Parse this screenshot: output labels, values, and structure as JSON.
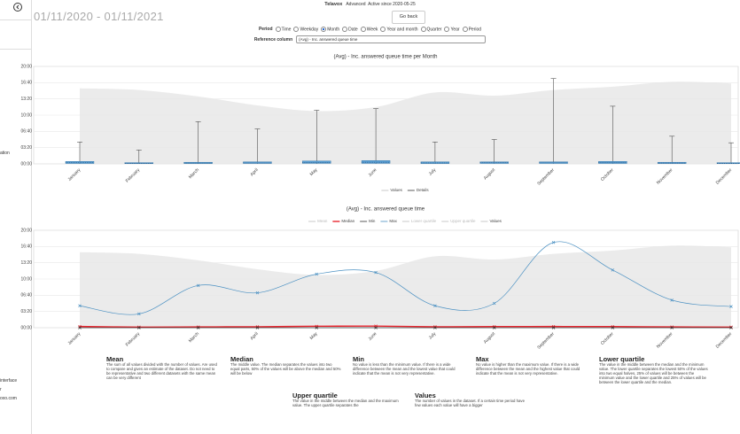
{
  "header": {
    "brand": "Telavox",
    "plan": "Advanced",
    "status": "Active since 2020-05-25"
  },
  "sidebar": [
    "ation",
    "interface",
    "r",
    "oxo.com"
  ],
  "date_range": "01/11/2020 - 01/11/2021",
  "back_button": "Go back",
  "period": {
    "label": "Period",
    "options": [
      "Time",
      "Weekday",
      "Month",
      "Date",
      "Week",
      "Year and month",
      "Quarter",
      "Year",
      "Period"
    ],
    "selected": 2
  },
  "reference": {
    "label": "Reference column",
    "value": "(Avg) - Inc. answered queue time"
  },
  "chart_data": [
    {
      "type": "boxplot",
      "title": "(Avg) - Inc. answered queue time per Month",
      "categories": [
        "January",
        "February",
        "March",
        "April",
        "May",
        "June",
        "July",
        "August",
        "September",
        "October",
        "November",
        "December"
      ],
      "ylim": [
        0,
        1200
      ],
      "yticks": [
        {
          "value": 0,
          "label": "00:00"
        },
        {
          "value": 200,
          "label": "03:20"
        },
        {
          "value": 400,
          "label": "06:40"
        },
        {
          "value": 600,
          "label": "10:00"
        },
        {
          "value": 800,
          "label": "13:20"
        },
        {
          "value": 1000,
          "label": "16:40"
        },
        {
          "value": 1200,
          "label": "20:00"
        }
      ],
      "grid": true,
      "series": [
        {
          "name": "Values",
          "color": "#e6e6e6",
          "style": "area",
          "values": [
            930,
            910,
            830,
            720,
            650,
            700,
            880,
            840,
            910,
            950,
            1010,
            990
          ]
        },
        {
          "name": "Details",
          "color": "#5a9fd4",
          "style": "box",
          "min": [
            0,
            0,
            0,
            0,
            0,
            0,
            0,
            0,
            0,
            0,
            0,
            0
          ],
          "lower_quartile": [
            5,
            3,
            4,
            5,
            6,
            6,
            4,
            5,
            5,
            5,
            4,
            3
          ],
          "median": [
            15,
            8,
            10,
            12,
            18,
            20,
            12,
            14,
            15,
            14,
            10,
            8
          ],
          "upper_quartile": [
            30,
            15,
            20,
            25,
            35,
            40,
            25,
            25,
            25,
            30,
            20,
            15
          ],
          "max": [
            270,
            170,
            520,
            430,
            660,
            680,
            270,
            300,
            1050,
            710,
            340,
            260
          ]
        }
      ]
    },
    {
      "type": "line",
      "title": "(Avg) - Inc. answered queue time",
      "categories": [
        "January",
        "February",
        "March",
        "April",
        "May",
        "June",
        "July",
        "August",
        "September",
        "October",
        "November",
        "December"
      ],
      "ylim": [
        0,
        1200
      ],
      "yticks": [
        {
          "value": 0,
          "label": "00:00"
        },
        {
          "value": 200,
          "label": "03:20"
        },
        {
          "value": 400,
          "label": "06:40"
        },
        {
          "value": 600,
          "label": "10:00"
        },
        {
          "value": 800,
          "label": "13:20"
        },
        {
          "value": 1000,
          "label": "16:40"
        },
        {
          "value": 1200,
          "label": "20:00"
        }
      ],
      "grid": true,
      "series": [
        {
          "name": "Mean",
          "color": "#bbbbbb",
          "visible": false
        },
        {
          "name": "Median",
          "color": "#e8262f",
          "style": "line",
          "values": [
            15,
            8,
            10,
            12,
            18,
            20,
            12,
            14,
            15,
            14,
            10,
            8
          ]
        },
        {
          "name": "Min",
          "color": "#333333",
          "style": "line",
          "values": [
            0,
            0,
            0,
            0,
            0,
            0,
            0,
            0,
            0,
            0,
            0,
            0
          ]
        },
        {
          "name": "Max",
          "color": "#4a90c2",
          "style": "line",
          "values": [
            270,
            170,
            520,
            430,
            660,
            680,
            270,
            300,
            1050,
            710,
            340,
            260
          ]
        },
        {
          "name": "Lower quartile",
          "color": "#bbbbbb",
          "visible": false
        },
        {
          "name": "Upper quartile",
          "color": "#bbbbbb",
          "visible": false
        },
        {
          "name": "Values",
          "color": "#e6e6e6",
          "style": "area",
          "values": [
            930,
            910,
            830,
            720,
            650,
            700,
            880,
            840,
            910,
            950,
            1010,
            990
          ]
        }
      ]
    }
  ],
  "descriptions": [
    {
      "title": "Mean",
      "text": "The sum of all values divided with the number of values. Are used to compare and gives an estimate of the dataset. Do not need to be representative and two different datasets with the same mean can be very different"
    },
    {
      "title": "Median",
      "text": "The middle value. The median separates the values into two equal parts, 50% of the values will be above the median and 50% will be below"
    },
    {
      "title": "Min",
      "text": "No value is less than the minimum value. If there is a wide difference between the mean and the lowest value that could indicate that the mean is not very representative."
    },
    {
      "title": "Max",
      "text": "No value is higher than the maximum value. If there is a wide difference between the mean and the highest value that could indicate that the mean is not very representative."
    },
    {
      "title": "Lower quartile",
      "text": "The value in the middle between the median and the minimum value. The lower quartile separates the lowest 50% of the values into two equal halves, 25% of values will be between the minimum value and the lower quartile and 25% of values will be between the lower quartile and the median."
    },
    {
      "title": "Upper quartile",
      "text": "The value in the middle between the median and the maximum value. The upper quartile separates the"
    },
    {
      "title": "Values",
      "text": "The number of values in the dataset. If a certain time period have few values each value will have a bigger"
    }
  ]
}
